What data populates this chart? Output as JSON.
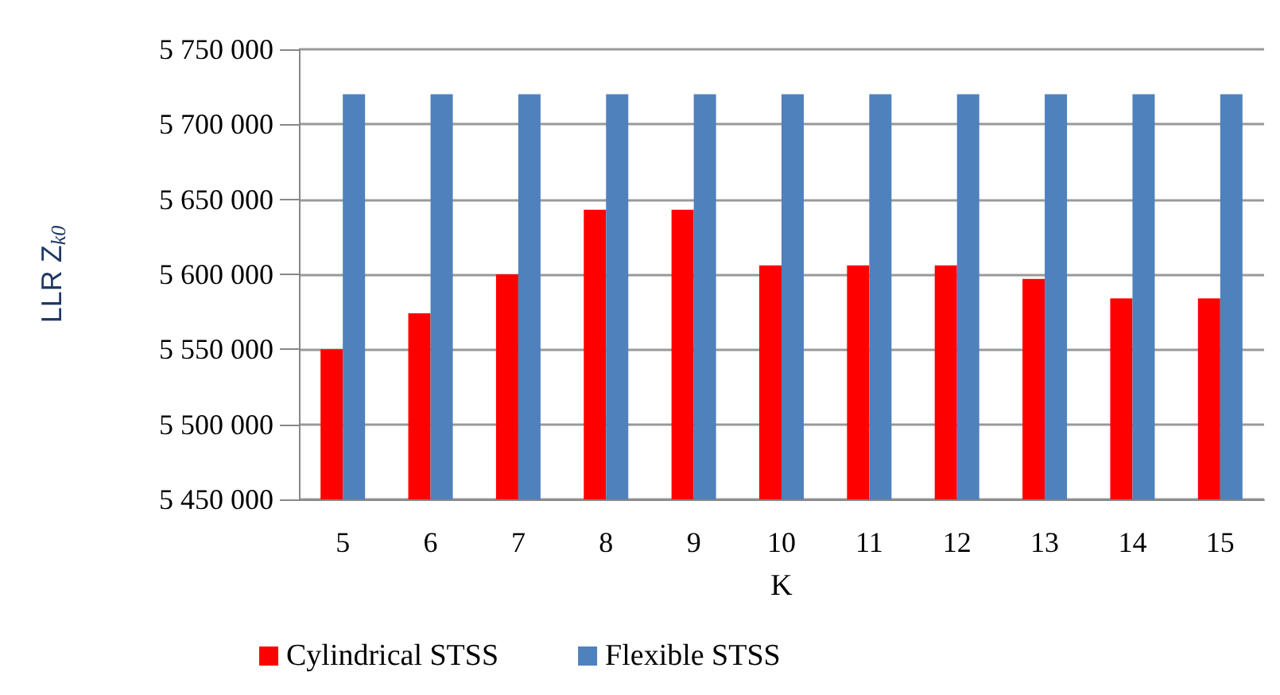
{
  "chart_data": {
    "type": "bar",
    "xlabel": "K",
    "ylabel": "LLR Z$_{k0}$",
    "categories": [
      "5",
      "6",
      "7",
      "8",
      "9",
      "10",
      "11",
      "12",
      "13",
      "14",
      "15"
    ],
    "series": [
      {
        "name": "Cylindrical STSS",
        "color": "#ff0000",
        "values": [
          5550000,
          5574000,
          5600000,
          5643000,
          5643000,
          5606000,
          5606000,
          5606000,
          5597000,
          5584000,
          5584000
        ]
      },
      {
        "name": "Flexible STSS",
        "color": "#4f81bd",
        "values": [
          5720000,
          5720000,
          5720000,
          5720000,
          5720000,
          5720000,
          5720000,
          5720000,
          5720000,
          5720000,
          5720000
        ]
      }
    ],
    "ylim": [
      5450000,
      5750000
    ],
    "yticks": [
      5450000,
      5500000,
      5550000,
      5600000,
      5650000,
      5700000,
      5750000
    ],
    "grid": "y",
    "legend": "bottom"
  }
}
